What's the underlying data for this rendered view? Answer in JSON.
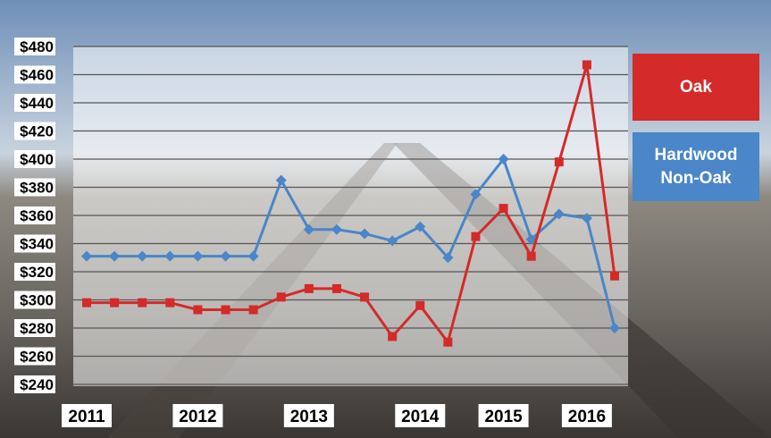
{
  "chart_data": {
    "type": "line",
    "categories": [
      "2011",
      null,
      null,
      null,
      "2012",
      null,
      null,
      null,
      "2013",
      null,
      null,
      null,
      "2014",
      null,
      null,
      "2015",
      null,
      null,
      "2016",
      null
    ],
    "series": [
      {
        "name": "Hardwood Non-Oak",
        "color": "#4a86c8",
        "marker": "diamond",
        "values": [
          331,
          331,
          331,
          331,
          331,
          331,
          331,
          385,
          350,
          350,
          347,
          342,
          352,
          330,
          375,
          400,
          343,
          361,
          358,
          280
        ]
      },
      {
        "name": "Oak",
        "color": "#d42a2a",
        "marker": "square",
        "values": [
          298,
          298,
          298,
          298,
          293,
          293,
          293,
          302,
          308,
          308,
          302,
          274,
          296,
          270,
          345,
          365,
          331,
          398,
          467,
          317
        ]
      }
    ],
    "ylim": [
      240,
      480
    ],
    "yticks": [
      {
        "value": 240,
        "label": "$240"
      },
      {
        "value": 260,
        "label": "$260"
      },
      {
        "value": 280,
        "label": "$280"
      },
      {
        "value": 300,
        "label": "$300"
      },
      {
        "value": 320,
        "label": "$320"
      },
      {
        "value": 340,
        "label": "$340"
      },
      {
        "value": 360,
        "label": "$360"
      },
      {
        "value": 380,
        "label": "$380"
      },
      {
        "value": 400,
        "label": "$400"
      },
      {
        "value": 420,
        "label": "$420"
      },
      {
        "value": 440,
        "label": "$440"
      },
      {
        "value": 460,
        "label": "$460"
      },
      {
        "value": 480,
        "label": "$480"
      }
    ],
    "grid": true,
    "legend": "right"
  }
}
